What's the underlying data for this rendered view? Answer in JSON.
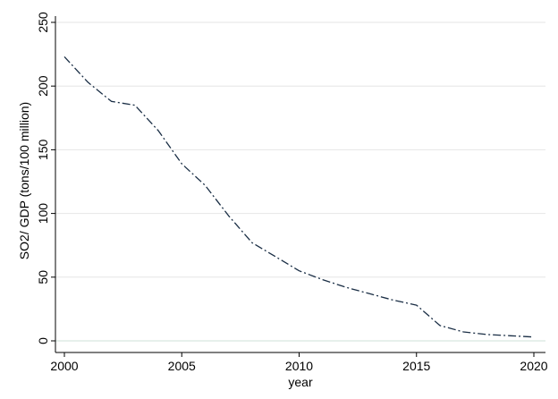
{
  "chart_data": {
    "type": "line",
    "title": "",
    "xlabel": "year",
    "ylabel": "SO2/ GDP (tons/100 million)",
    "xlim": [
      2000,
      2020
    ],
    "ylim": [
      0,
      250
    ],
    "x_ticks": [
      2000,
      2005,
      2010,
      2015,
      2020
    ],
    "y_ticks": [
      0,
      50,
      100,
      150,
      200,
      250
    ],
    "grid": true,
    "line_style": "dash-dot",
    "colors": {
      "line": "#1a2e45",
      "grid": "#e6e6e6",
      "axis": "#000000",
      "zero_line": "#cfe0d8"
    },
    "series": [
      {
        "x": [
          2000,
          2001,
          2002,
          2003,
          2004,
          2005,
          2006,
          2007,
          2008,
          2009,
          2010,
          2011,
          2012,
          2013,
          2014,
          2015,
          2016,
          2017,
          2018,
          2019,
          2020
        ],
        "values": [
          223,
          203,
          188,
          185,
          165,
          139,
          122,
          98,
          77,
          66,
          55,
          48,
          42,
          37,
          32,
          28,
          12,
          7,
          5,
          4,
          3
        ]
      }
    ]
  }
}
